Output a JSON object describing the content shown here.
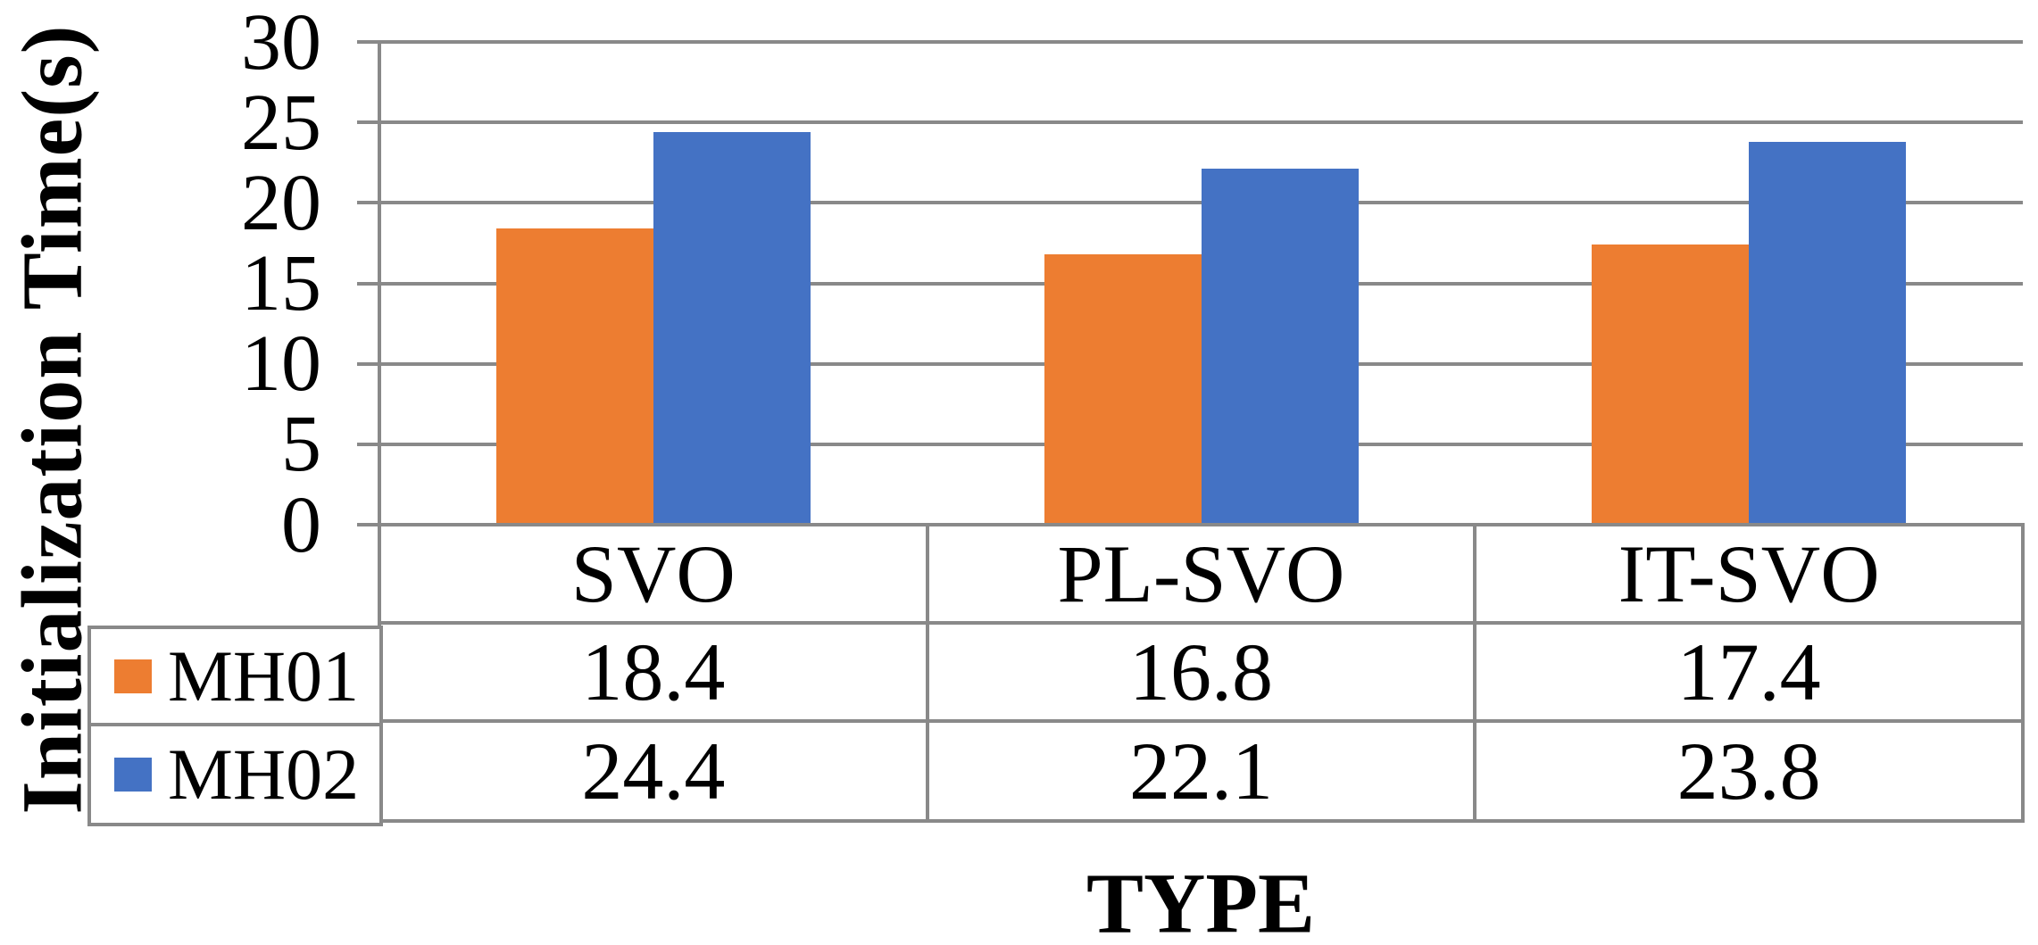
{
  "chart_data": {
    "type": "bar",
    "title": "",
    "xlabel": "TYPE",
    "ylabel": "Initialization Time(s)",
    "categories": [
      "SVO",
      "PL-SVO",
      "IT-SVO"
    ],
    "series": [
      {
        "name": "MH01",
        "color": "#ED7D31",
        "values": [
          18.4,
          16.8,
          17.4
        ]
      },
      {
        "name": "MH02",
        "color": "#4472C4",
        "values": [
          24.4,
          22.1,
          23.8
        ]
      }
    ],
    "ylim": [
      0,
      30
    ],
    "yticks": [
      0,
      5,
      10,
      15,
      20,
      25,
      30
    ],
    "grid": true,
    "legend_position": "data-table-left",
    "data_table": true
  },
  "colors": {
    "grid": "#898989",
    "table_border": "#898989",
    "text": "#000000",
    "background": "#FFFFFF"
  }
}
